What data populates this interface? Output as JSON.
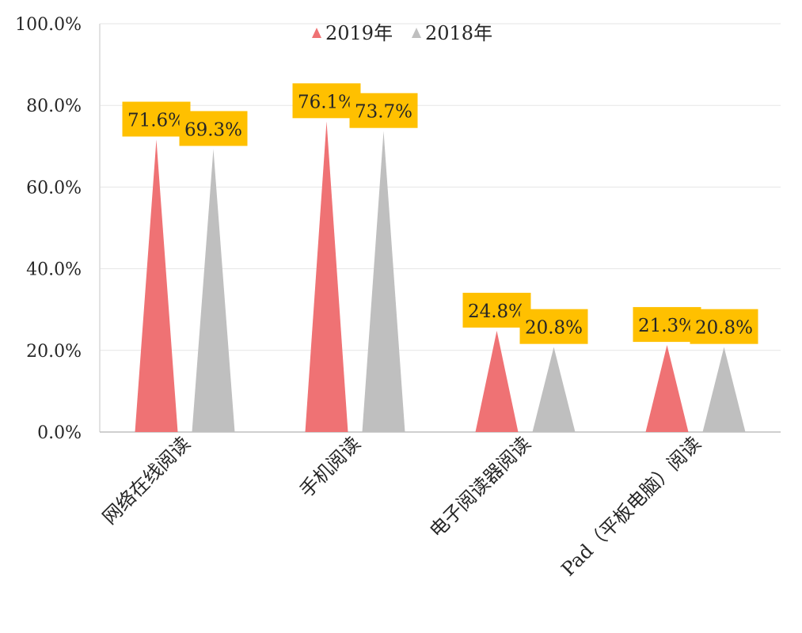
{
  "chart_data": {
    "type": "bar",
    "mark": "triangle",
    "categories": [
      "网络在线阅读",
      "手机阅读",
      "电子阅读器阅读",
      "Pad（平板电脑）阅读"
    ],
    "series": [
      {
        "name": "2019年",
        "values": [
          71.6,
          76.1,
          24.8,
          21.3
        ],
        "color": "#EF7274",
        "labels": [
          "71.6%",
          "76.1%",
          "24.8%",
          "21.3%"
        ]
      },
      {
        "name": "2018年",
        "values": [
          69.3,
          73.7,
          20.8,
          20.8
        ],
        "color": "#BFBFBF",
        "labels": [
          "69.3%",
          "73.7%",
          "20.8%",
          "20.8%"
        ]
      }
    ],
    "yticks": [
      "0.0%",
      "20.0%",
      "40.0%",
      "60.0%",
      "80.0%",
      "100.0%"
    ],
    "ylim": [
      0,
      100
    ],
    "grid": true,
    "legend": "top-center",
    "label_bg": "#FFC000",
    "title": "",
    "xlabel": "",
    "ylabel": ""
  }
}
